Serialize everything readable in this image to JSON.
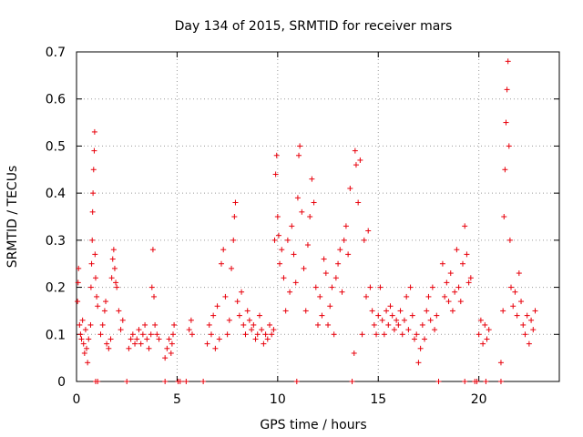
{
  "chart_data": {
    "type": "scatter",
    "title": "Day 134 of 2015, SRMTID for receiver mars",
    "xlabel": "GPS time / hours",
    "ylabel": "SRMTID / TECUs",
    "xlim": [
      0,
      24
    ],
    "ylim": [
      0,
      0.7
    ],
    "x_ticks": [
      0,
      5,
      10,
      15,
      20
    ],
    "y_ticks": [
      0,
      0.1,
      0.2,
      0.3,
      0.4,
      0.5,
      0.6,
      0.7
    ],
    "x_tick_labels": [
      "0",
      "5",
      "10",
      "15",
      "20"
    ],
    "y_tick_labels": [
      "0",
      "0.1",
      "0.2",
      "0.3",
      "0.4",
      "0.5",
      "0.6",
      "0.7"
    ],
    "grid": true,
    "marker": "+",
    "marker_color": "#e8000b",
    "series": [
      {
        "name": "SRMTID",
        "points": [
          [
            0.05,
            0.17
          ],
          [
            0.08,
            0.21
          ],
          [
            0.1,
            0.24
          ],
          [
            0.15,
            0.12
          ],
          [
            0.2,
            0.1
          ],
          [
            0.25,
            0.09
          ],
          [
            0.3,
            0.13
          ],
          [
            0.35,
            0.08
          ],
          [
            0.4,
            0.06
          ],
          [
            0.45,
            0.11
          ],
          [
            0.5,
            0.07
          ],
          [
            0.55,
            0.04
          ],
          [
            0.6,
            0.09
          ],
          [
            0.7,
            0.12
          ],
          [
            0.72,
            0.2
          ],
          [
            0.75,
            0.25
          ],
          [
            0.78,
            0.3
          ],
          [
            0.8,
            0.36
          ],
          [
            0.82,
            0.4
          ],
          [
            0.85,
            0.45
          ],
          [
            0.88,
            0.49
          ],
          [
            0.9,
            0.53
          ],
          [
            0.92,
            0.27
          ],
          [
            0.95,
            0.22
          ],
          [
            1.0,
            0.18
          ],
          [
            1.05,
            0.16
          ],
          [
            1.2,
            0.1
          ],
          [
            1.3,
            0.12
          ],
          [
            1.4,
            0.15
          ],
          [
            1.45,
            0.17
          ],
          [
            1.5,
            0.08
          ],
          [
            1.6,
            0.07
          ],
          [
            1.7,
            0.09
          ],
          [
            1.75,
            0.22
          ],
          [
            1.8,
            0.26
          ],
          [
            1.85,
            0.28
          ],
          [
            1.9,
            0.24
          ],
          [
            1.95,
            0.21
          ],
          [
            2.0,
            0.2
          ],
          [
            2.1,
            0.15
          ],
          [
            2.2,
            0.11
          ],
          [
            2.3,
            0.13
          ],
          [
            2.6,
            0.07
          ],
          [
            2.7,
            0.09
          ],
          [
            2.8,
            0.1
          ],
          [
            2.9,
            0.08
          ],
          [
            3.0,
            0.09
          ],
          [
            3.1,
            0.11
          ],
          [
            3.2,
            0.08
          ],
          [
            3.3,
            0.1
          ],
          [
            3.4,
            0.12
          ],
          [
            3.5,
            0.09
          ],
          [
            3.6,
            0.07
          ],
          [
            3.7,
            0.1
          ],
          [
            3.75,
            0.2
          ],
          [
            3.8,
            0.28
          ],
          [
            3.85,
            0.18
          ],
          [
            3.9,
            0.12
          ],
          [
            4.0,
            0.1
          ],
          [
            4.1,
            0.09
          ],
          [
            4.4,
            0.05
          ],
          [
            4.5,
            0.07
          ],
          [
            4.6,
            0.09
          ],
          [
            4.7,
            0.06
          ],
          [
            4.75,
            0.08
          ],
          [
            4.8,
            0.1
          ],
          [
            4.85,
            0.12
          ],
          [
            5.6,
            0.11
          ],
          [
            5.7,
            0.13
          ],
          [
            5.75,
            0.1
          ],
          [
            6.5,
            0.08
          ],
          [
            6.6,
            0.12
          ],
          [
            6.7,
            0.1
          ],
          [
            6.8,
            0.14
          ],
          [
            6.9,
            0.07
          ],
          [
            7.0,
            0.16
          ],
          [
            7.1,
            0.09
          ],
          [
            7.2,
            0.25
          ],
          [
            7.3,
            0.28
          ],
          [
            7.4,
            0.18
          ],
          [
            7.5,
            0.1
          ],
          [
            7.6,
            0.13
          ],
          [
            7.7,
            0.24
          ],
          [
            7.8,
            0.3
          ],
          [
            7.85,
            0.35
          ],
          [
            7.9,
            0.38
          ],
          [
            8.0,
            0.17
          ],
          [
            8.1,
            0.14
          ],
          [
            8.2,
            0.19
          ],
          [
            8.3,
            0.12
          ],
          [
            8.4,
            0.1
          ],
          [
            8.5,
            0.15
          ],
          [
            8.6,
            0.13
          ],
          [
            8.7,
            0.11
          ],
          [
            8.8,
            0.12
          ],
          [
            8.9,
            0.09
          ],
          [
            9.0,
            0.1
          ],
          [
            9.1,
            0.14
          ],
          [
            9.2,
            0.11
          ],
          [
            9.3,
            0.08
          ],
          [
            9.4,
            0.1
          ],
          [
            9.5,
            0.09
          ],
          [
            9.6,
            0.12
          ],
          [
            9.7,
            0.1
          ],
          [
            9.8,
            0.11
          ],
          [
            9.85,
            0.3
          ],
          [
            9.9,
            0.44
          ],
          [
            9.95,
            0.48
          ],
          [
            10.0,
            0.35
          ],
          [
            10.05,
            0.31
          ],
          [
            10.1,
            0.25
          ],
          [
            10.2,
            0.28
          ],
          [
            10.3,
            0.22
          ],
          [
            10.4,
            0.15
          ],
          [
            10.5,
            0.3
          ],
          [
            10.6,
            0.19
          ],
          [
            10.7,
            0.33
          ],
          [
            10.8,
            0.27
          ],
          [
            10.9,
            0.21
          ],
          [
            11.0,
            0.39
          ],
          [
            11.05,
            0.48
          ],
          [
            11.1,
            0.5
          ],
          [
            11.2,
            0.36
          ],
          [
            11.3,
            0.24
          ],
          [
            11.4,
            0.15
          ],
          [
            11.5,
            0.29
          ],
          [
            11.6,
            0.35
          ],
          [
            11.7,
            0.43
          ],
          [
            11.8,
            0.38
          ],
          [
            11.9,
            0.2
          ],
          [
            12.0,
            0.12
          ],
          [
            12.1,
            0.18
          ],
          [
            12.2,
            0.14
          ],
          [
            12.3,
            0.26
          ],
          [
            12.4,
            0.23
          ],
          [
            12.5,
            0.12
          ],
          [
            12.6,
            0.16
          ],
          [
            12.7,
            0.2
          ],
          [
            12.8,
            0.1
          ],
          [
            12.9,
            0.22
          ],
          [
            13.0,
            0.25
          ],
          [
            13.1,
            0.28
          ],
          [
            13.2,
            0.19
          ],
          [
            13.3,
            0.3
          ],
          [
            13.4,
            0.33
          ],
          [
            13.5,
            0.27
          ],
          [
            13.6,
            0.41
          ],
          [
            13.8,
            0.06
          ],
          [
            13.85,
            0.49
          ],
          [
            13.9,
            0.46
          ],
          [
            14.0,
            0.38
          ],
          [
            14.1,
            0.47
          ],
          [
            14.2,
            0.1
          ],
          [
            14.3,
            0.3
          ],
          [
            14.4,
            0.18
          ],
          [
            14.5,
            0.32
          ],
          [
            14.6,
            0.2
          ],
          [
            14.7,
            0.15
          ],
          [
            14.8,
            0.12
          ],
          [
            14.9,
            0.1
          ],
          [
            15.0,
            0.14
          ],
          [
            15.1,
            0.2
          ],
          [
            15.2,
            0.13
          ],
          [
            15.3,
            0.1
          ],
          [
            15.4,
            0.15
          ],
          [
            15.5,
            0.12
          ],
          [
            15.6,
            0.16
          ],
          [
            15.7,
            0.14
          ],
          [
            15.8,
            0.11
          ],
          [
            15.9,
            0.13
          ],
          [
            16.0,
            0.12
          ],
          [
            16.1,
            0.15
          ],
          [
            16.2,
            0.1
          ],
          [
            16.3,
            0.13
          ],
          [
            16.4,
            0.18
          ],
          [
            16.5,
            0.11
          ],
          [
            16.6,
            0.2
          ],
          [
            16.7,
            0.14
          ],
          [
            16.8,
            0.09
          ],
          [
            16.9,
            0.1
          ],
          [
            17.0,
            0.04
          ],
          [
            17.1,
            0.07
          ],
          [
            17.2,
            0.12
          ],
          [
            17.3,
            0.09
          ],
          [
            17.4,
            0.15
          ],
          [
            17.5,
            0.18
          ],
          [
            17.6,
            0.13
          ],
          [
            17.7,
            0.2
          ],
          [
            17.8,
            0.11
          ],
          [
            17.9,
            0.14
          ],
          [
            18.2,
            0.25
          ],
          [
            18.3,
            0.18
          ],
          [
            18.4,
            0.21
          ],
          [
            18.5,
            0.17
          ],
          [
            18.6,
            0.23
          ],
          [
            18.7,
            0.15
          ],
          [
            18.8,
            0.19
          ],
          [
            18.9,
            0.28
          ],
          [
            19.0,
            0.2
          ],
          [
            19.1,
            0.17
          ],
          [
            19.2,
            0.25
          ],
          [
            19.3,
            0.33
          ],
          [
            19.4,
            0.27
          ],
          [
            19.5,
            0.21
          ],
          [
            19.6,
            0.22
          ],
          [
            20.0,
            0.1
          ],
          [
            20.1,
            0.13
          ],
          [
            20.2,
            0.08
          ],
          [
            20.3,
            0.12
          ],
          [
            20.4,
            0.09
          ],
          [
            20.5,
            0.11
          ],
          [
            21.1,
            0.04
          ],
          [
            21.2,
            0.15
          ],
          [
            21.25,
            0.35
          ],
          [
            21.3,
            0.45
          ],
          [
            21.35,
            0.55
          ],
          [
            21.4,
            0.62
          ],
          [
            21.45,
            0.68
          ],
          [
            21.5,
            0.5
          ],
          [
            21.55,
            0.3
          ],
          [
            21.6,
            0.2
          ],
          [
            21.7,
            0.16
          ],
          [
            21.8,
            0.19
          ],
          [
            21.9,
            0.14
          ],
          [
            22.0,
            0.23
          ],
          [
            22.1,
            0.17
          ],
          [
            22.2,
            0.12
          ],
          [
            22.3,
            0.1
          ],
          [
            22.4,
            0.14
          ],
          [
            22.5,
            0.08
          ],
          [
            22.6,
            0.13
          ],
          [
            22.7,
            0.11
          ],
          [
            22.8,
            0.15
          ],
          [
            0.95,
            0.0
          ],
          [
            1.05,
            0.0
          ],
          [
            2.5,
            0.0
          ],
          [
            4.4,
            0.0
          ],
          [
            5.05,
            0.0
          ],
          [
            5.15,
            0.0
          ],
          [
            5.45,
            0.0
          ],
          [
            6.3,
            0.0
          ],
          [
            10.95,
            0.0
          ],
          [
            13.7,
            0.0
          ],
          [
            18.0,
            0.0
          ],
          [
            19.3,
            0.0
          ],
          [
            19.8,
            0.0
          ],
          [
            19.9,
            0.0
          ],
          [
            20.35,
            0.0
          ],
          [
            21.1,
            0.0
          ]
        ]
      }
    ]
  }
}
